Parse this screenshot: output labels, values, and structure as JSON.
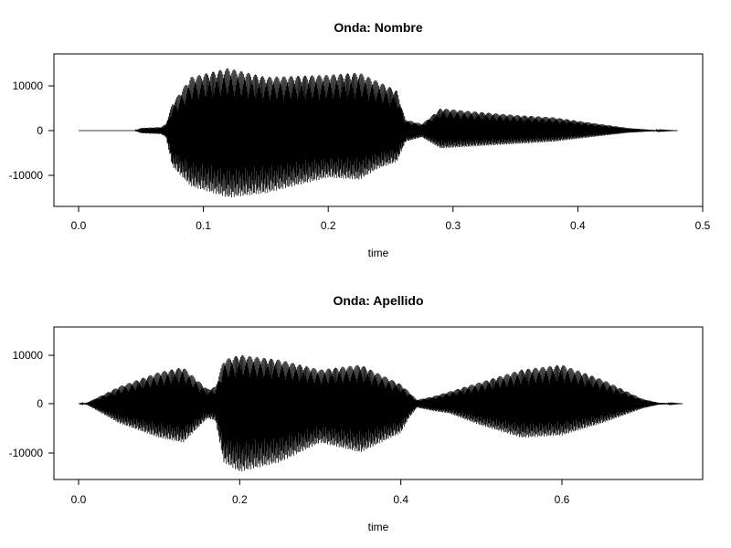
{
  "chart_data": [
    {
      "type": "line",
      "title": "Onda: Nombre",
      "xlabel": "time",
      "ylabel": "",
      "xlim": [
        0,
        0.5
      ],
      "ylim": [
        -16000,
        16000
      ],
      "x_ticks": [
        0.0,
        0.1,
        0.2,
        0.3,
        0.4,
        0.5
      ],
      "x_tick_labels": [
        "0.0",
        "0.1",
        "0.2",
        "0.3",
        "0.4",
        "0.5"
      ],
      "y_ticks": [
        -10000,
        0,
        10000
      ],
      "y_tick_labels": [
        "-10000",
        "0",
        "10000"
      ],
      "grid": false,
      "color": "#000000",
      "envelope": {
        "t_start": 0.0,
        "t_end": 0.48,
        "x": [
          0.0,
          0.045,
          0.05,
          0.066,
          0.07,
          0.075,
          0.09,
          0.12,
          0.15,
          0.2,
          0.225,
          0.24,
          0.255,
          0.262,
          0.275,
          0.29,
          0.32,
          0.35,
          0.38,
          0.41,
          0.44,
          0.46,
          0.48
        ],
        "upper": [
          0,
          0,
          600,
          800,
          1500,
          6000,
          12000,
          14000,
          12000,
          12500,
          13000,
          11000,
          9000,
          2500,
          1500,
          5000,
          4200,
          3500,
          3000,
          1800,
          600,
          150,
          0
        ],
        "lower": [
          0,
          0,
          -600,
          -800,
          -1500,
          -8000,
          -12500,
          -15000,
          -14000,
          -10500,
          -11000,
          -8500,
          -7000,
          -2500,
          -1500,
          -4000,
          -3500,
          -3000,
          -2500,
          -1500,
          -500,
          -150,
          0
        ]
      }
    },
    {
      "type": "line",
      "title": "Onda: Apellido",
      "xlabel": "time",
      "ylabel": "",
      "xlim": [
        -0.01,
        0.77
      ],
      "ylim": [
        -16000,
        16000
      ],
      "x_ticks": [
        0.0,
        0.2,
        0.4,
        0.6
      ],
      "x_tick_labels": [
        "0.0",
        "0.2",
        "0.4",
        "0.6"
      ],
      "y_ticks": [
        -10000,
        0,
        10000
      ],
      "y_tick_labels": [
        "-10000",
        "0",
        "10000"
      ],
      "grid": false,
      "color": "#000000",
      "envelope": {
        "t_start": 0.0,
        "t_end": 0.75,
        "x": [
          0.0,
          0.01,
          0.05,
          0.1,
          0.13,
          0.16,
          0.17,
          0.18,
          0.2,
          0.25,
          0.3,
          0.35,
          0.4,
          0.41,
          0.42,
          0.44,
          0.46,
          0.5,
          0.55,
          0.6,
          0.65,
          0.7,
          0.72,
          0.75
        ],
        "upper": [
          0,
          200,
          3500,
          6500,
          7500,
          3000,
          3500,
          9000,
          10000,
          9000,
          7000,
          8000,
          4000,
          2500,
          800,
          1500,
          2500,
          4500,
          7000,
          8000,
          5000,
          1000,
          200,
          0
        ],
        "lower": [
          0,
          -200,
          -4000,
          -7000,
          -8000,
          -3000,
          -3500,
          -12000,
          -14000,
          -12000,
          -8000,
          -10000,
          -6000,
          -3000,
          -800,
          -1500,
          -2000,
          -4500,
          -7000,
          -6500,
          -4000,
          -1000,
          -200,
          0
        ]
      }
    }
  ]
}
